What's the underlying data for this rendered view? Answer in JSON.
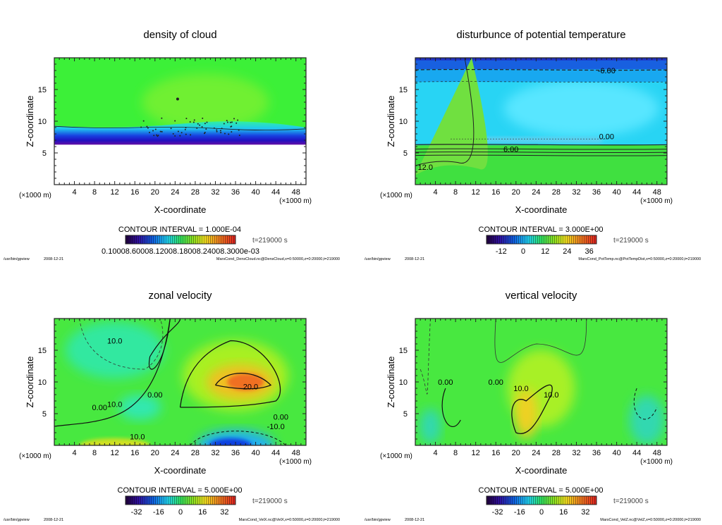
{
  "common": {
    "xlabel": "X-coordinate",
    "ylabel": "Z-coordinate",
    "unit": "(×1000 m)",
    "time": "t=219000 s",
    "program": "/usr/bin/gpview",
    "date": "2008-12-21",
    "xticks": [
      "4",
      "8",
      "12",
      "16",
      "20",
      "24",
      "28",
      "32",
      "36",
      "40",
      "44",
      "48"
    ],
    "yticks": [
      "5",
      "10",
      "15"
    ],
    "xlim": [
      0,
      50
    ],
    "ylim": [
      0,
      20
    ]
  },
  "chart_data": [
    {
      "type": "heatmap",
      "title": "density of cloud",
      "contour_interval": "CONTOUR INTERVAL = 1.000E-04",
      "colorbar_text": "0.10008.60008.12008.18008.24008.3000e-03",
      "colorbar_ticks": [],
      "colorbar_range": [
        0,
        1
      ],
      "contour_labels": [],
      "file": "MarsCond_DensCloud.nc@DensCloud,x=0:50000,z=0:20000,t=219000"
    },
    {
      "type": "heatmap",
      "title": "disturbunce of potential temperature",
      "contour_interval": "CONTOUR INTERVAL = 3.000E+00",
      "colorbar_text": "",
      "colorbar_ticks": [
        "-12",
        "0",
        "12",
        "24",
        "36"
      ],
      "colorbar_range": [
        -20,
        40
      ],
      "contour_labels": [
        "-6.00",
        "0.00",
        "6.00",
        "12.0"
      ],
      "file": "MarsCond_PotTemp.nc@PotTempDist,x=0:50000,z=0:20000,t=219000"
    },
    {
      "type": "heatmap",
      "title": "zonal velocity",
      "contour_interval": "CONTOUR INTERVAL = 5.000E+00",
      "colorbar_text": "",
      "colorbar_ticks": [
        "-32",
        "-16",
        "0",
        "16",
        "32"
      ],
      "colorbar_range": [
        -40,
        40
      ],
      "contour_labels": [
        "10.0",
        "20.0",
        "10.0",
        "0.00",
        "0.00",
        "10.0",
        "-10.0",
        "0.00"
      ],
      "file": "MarsCond_VelX.nc@VelX,x=0:50000,z=0:20000,t=219000"
    },
    {
      "type": "heatmap",
      "title": "vertical velocity",
      "contour_interval": "CONTOUR INTERVAL = 5.000E+00",
      "colorbar_text": "",
      "colorbar_ticks": [
        "-32",
        "-16",
        "0",
        "16",
        "32"
      ],
      "colorbar_range": [
        -40,
        40
      ],
      "contour_labels": [
        "10.0",
        "0.00",
        "0.00",
        "10.0"
      ],
      "file": "MarsCond_VelZ.nc@VelZ,x=0:50000,z=0:20000,t=219000"
    }
  ]
}
